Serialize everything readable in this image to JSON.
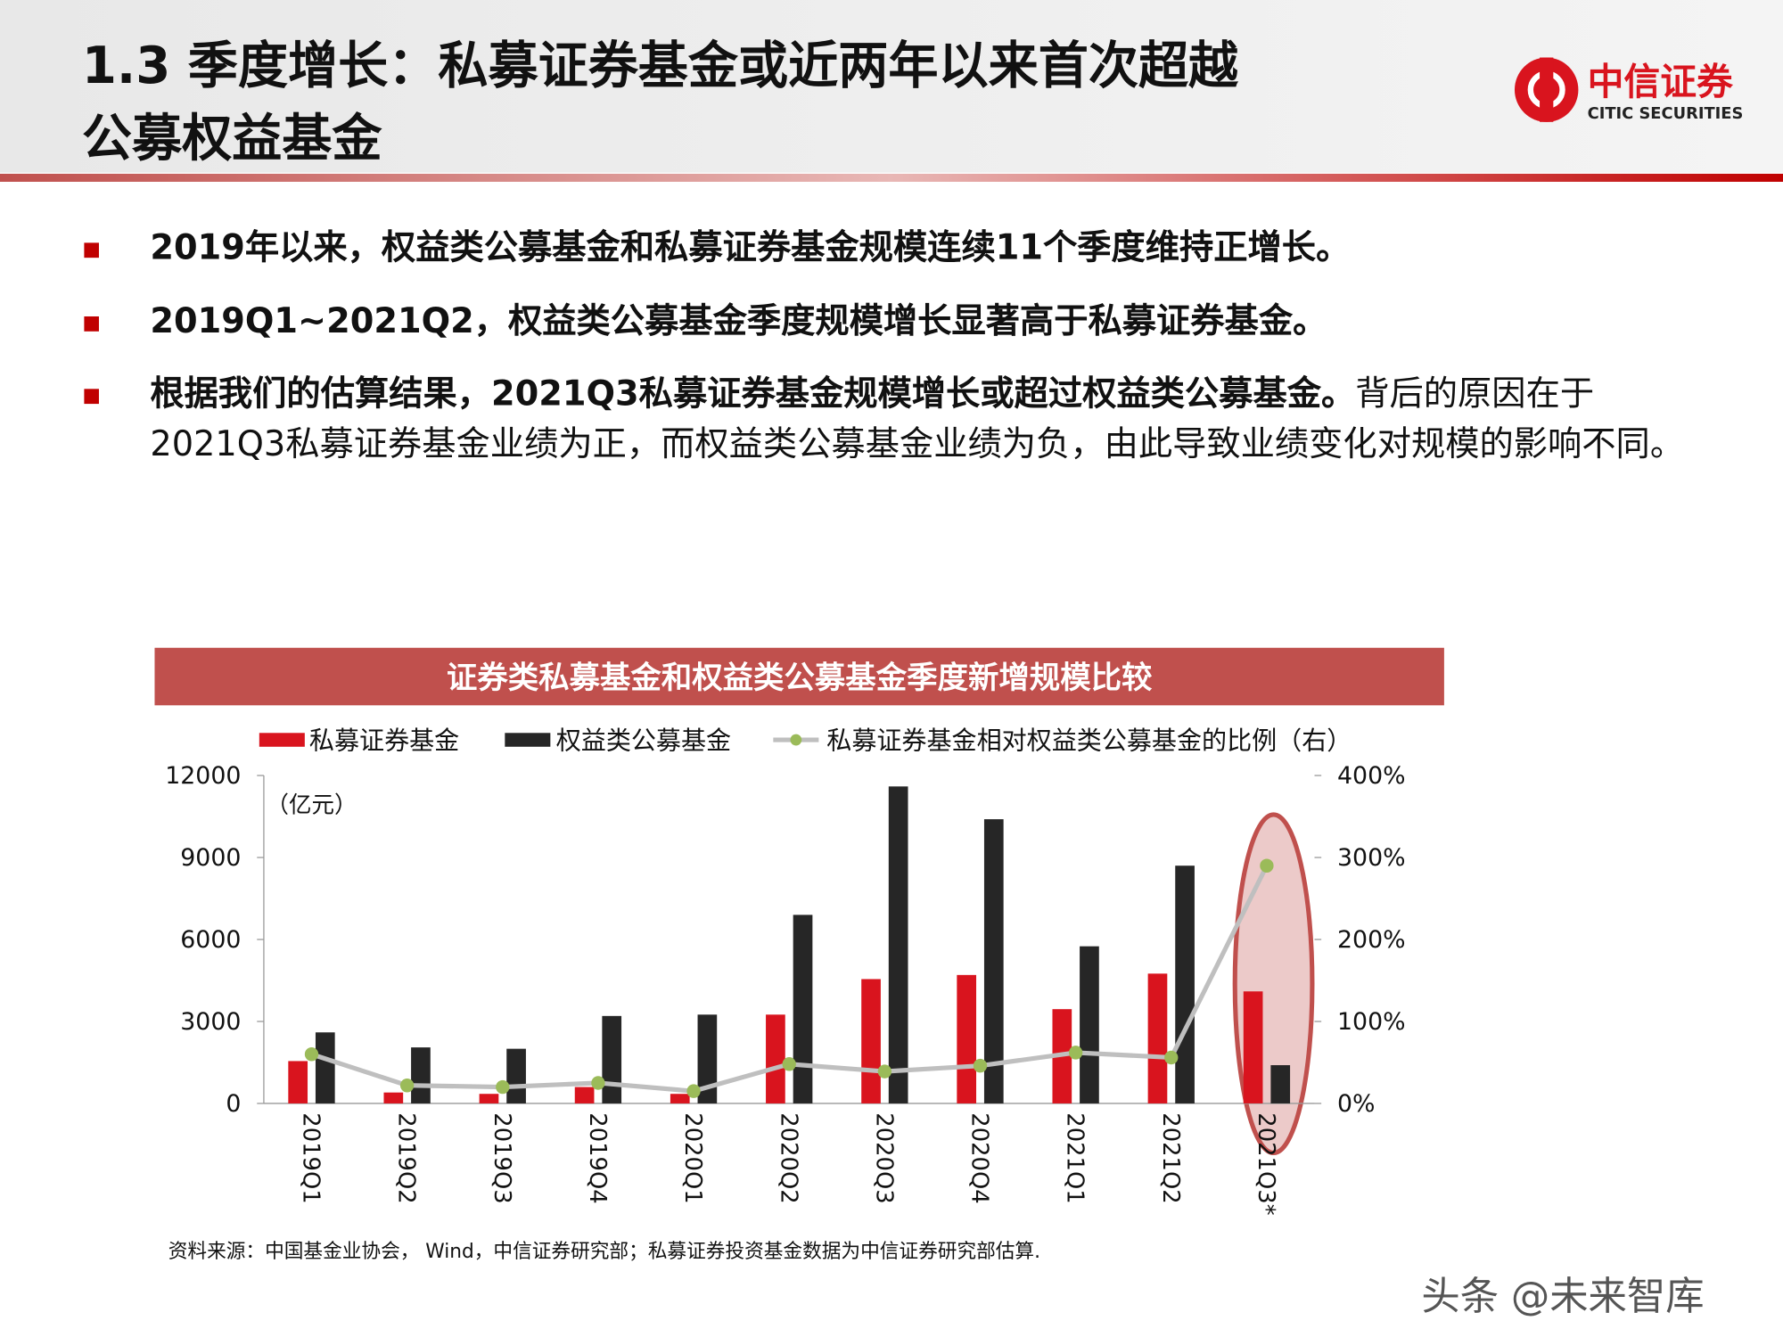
{
  "header": {
    "title_lines": [
      "1.3 季度增长：私募证券基金或近两年以来首次超越",
      "公募权益基金"
    ],
    "logo_cn": "中信证券",
    "logo_en": "CITIC SECURITIES"
  },
  "bullets": [
    {
      "bold": "2019年以来，权益类公募基金和私募证券基金规模连续11个季度维持正增长。"
    },
    {
      "bold": "2019Q1~2021Q2，权益类公募基金季度规模增长显著高于私募证券基金。"
    },
    {
      "bold": "根据我们的估算结果，2021Q3私募证券基金规模增长或超过权益类公募基金。",
      "normal": "背后的原因在于2021Q3私募证券基金业绩为正，而权益类公募基金业绩为负，由此导致业绩变化对规模的影响不同。"
    }
  ],
  "chart_data": {
    "type": "bar_line",
    "title": "证券类私募基金和权益类公募基金季度新增规模比较",
    "y_unit_label": "（亿元）",
    "categories": [
      "2019Q1",
      "2019Q2",
      "2019Q3",
      "2019Q4",
      "2020Q1",
      "2020Q2",
      "2020Q3",
      "2020Q4",
      "2021Q1",
      "2021Q2",
      "2021Q3*"
    ],
    "series": [
      {
        "name": "私募证券基金",
        "color": "#d9141e",
        "type": "bar",
        "values": [
          1550,
          400,
          350,
          600,
          350,
          3250,
          4550,
          4700,
          3450,
          4750,
          4100
        ]
      },
      {
        "name": "权益类公募基金",
        "color": "#262626",
        "type": "bar",
        "values": [
          2600,
          2050,
          2000,
          3200,
          3250,
          6900,
          11600,
          10400,
          5750,
          8700,
          1400
        ]
      },
      {
        "name": "私募证券基金相对权益类公募基金的比例（右）",
        "color": "#bfbfbf",
        "marker_color": "#9bbb59",
        "type": "line",
        "axis": "y2",
        "values": [
          60,
          22,
          20,
          25,
          15,
          48,
          39,
          46,
          62,
          56,
          290
        ]
      }
    ],
    "ylim": [
      0,
      12000
    ],
    "yticks": [
      0,
      3000,
      6000,
      9000,
      12000
    ],
    "y2lim": [
      0,
      400
    ],
    "y2ticks": [
      {
        "value": 0,
        "label": "0%"
      },
      {
        "value": 100,
        "label": "100%"
      },
      {
        "value": 200,
        "label": "200%"
      },
      {
        "value": 300,
        "label": "300%"
      },
      {
        "value": 400,
        "label": "400%"
      }
    ]
  },
  "source": "资料来源：中国基金业协会， Wind，中信证券研究部；私募证券投资基金数据为中信证券研究部估算.",
  "watermark": "头条 @未来智库"
}
